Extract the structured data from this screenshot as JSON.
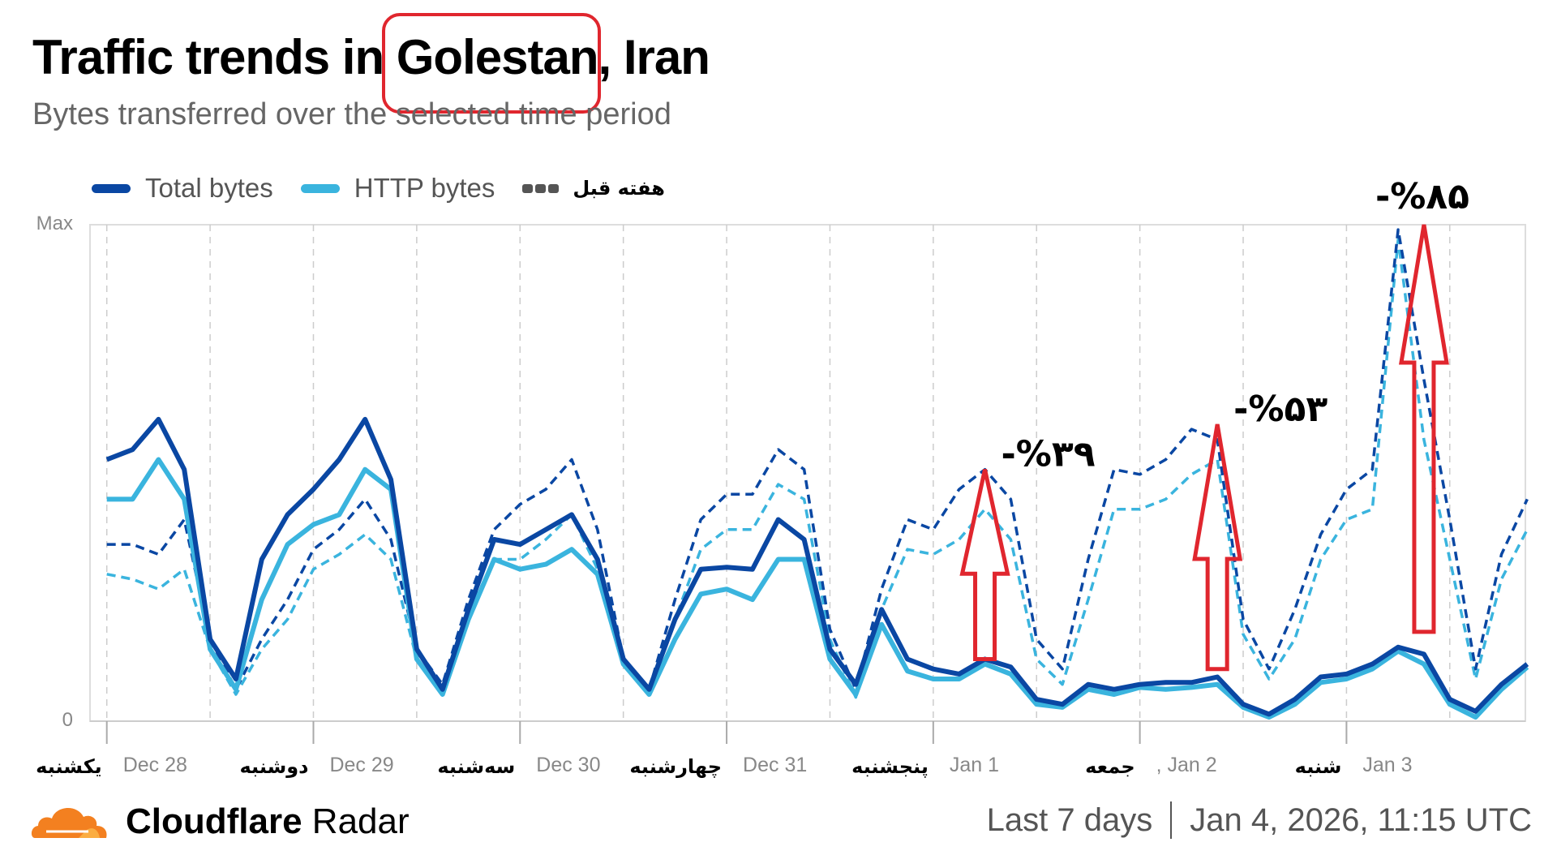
{
  "header": {
    "title_pre": "Traffic trends in ",
    "title_region": "Golestan",
    "title_post": ", Iran",
    "subtitle": "Bytes transferred over the selected time period"
  },
  "legend": [
    {
      "label": "Total bytes",
      "color": "#0a47a3",
      "style": "solid"
    },
    {
      "label": "HTTP bytes",
      "color": "#3ab4de",
      "style": "solid"
    },
    {
      "label": "هفته قبل",
      "color": "#555555",
      "style": "dashed"
    }
  ],
  "chart_data": {
    "type": "line",
    "title": "",
    "y_tick_labels": [
      "Max",
      "0"
    ],
    "ylim": [
      0,
      100
    ],
    "grid": "vertical dashed every 12 hours",
    "legend_position": "top-left",
    "x_ticks": [
      {
        "day": "یکشنبه",
        "date": "Dec 28"
      },
      {
        "day": "دوشنبه",
        "date": "Dec 29"
      },
      {
        "day": "سه‌شنبه",
        "date": "Dec 30"
      },
      {
        "day": "چهارشنبه",
        "date": "Dec 31"
      },
      {
        "day": "پنجشنبه",
        "date": "Jan 1"
      },
      {
        "day": "جمعه",
        "date": ", Jan 2"
      },
      {
        "day": "شنبه",
        "date": "Jan 3"
      }
    ],
    "x": [
      "Dec 28 00:00",
      "Dec 28 03:00",
      "Dec 28 06:00",
      "Dec 28 09:00",
      "Dec 28 12:00",
      "Dec 28 15:00",
      "Dec 28 18:00",
      "Dec 28 21:00",
      "Dec 29 00:00",
      "Dec 29 03:00",
      "Dec 29 06:00",
      "Dec 29 09:00",
      "Dec 29 12:00",
      "Dec 29 15:00",
      "Dec 29 18:00",
      "Dec 29 21:00",
      "Dec 30 00:00",
      "Dec 30 03:00",
      "Dec 30 06:00",
      "Dec 30 09:00",
      "Dec 30 12:00",
      "Dec 30 15:00",
      "Dec 30 18:00",
      "Dec 30 21:00",
      "Dec 31 00:00",
      "Dec 31 03:00",
      "Dec 31 06:00",
      "Dec 31 09:00",
      "Dec 31 12:00",
      "Dec 31 15:00",
      "Dec 31 18:00",
      "Dec 31 21:00",
      "Jan 1 00:00",
      "Jan 1 03:00",
      "Jan 1 06:00",
      "Jan 1 09:00",
      "Jan 1 12:00",
      "Jan 1 15:00",
      "Jan 1 18:00",
      "Jan 1 21:00",
      "Jan 2 00:00",
      "Jan 2 03:00",
      "Jan 2 06:00",
      "Jan 2 09:00",
      "Jan 2 12:00",
      "Jan 2 15:00",
      "Jan 2 18:00",
      "Jan 2 21:00",
      "Jan 3 00:00",
      "Jan 3 03:00",
      "Jan 3 06:00",
      "Jan 3 09:00",
      "Jan 3 12:00",
      "Jan 3 15:00",
      "Jan 3 18:00",
      "Jan 3 21:00"
    ],
    "series": [
      {
        "name": "Total bytes",
        "color": "#0a47a3",
        "dashed": false,
        "values": [
          52.7,
          54.7,
          60.8,
          50.7,
          16.5,
          8.5,
          32.6,
          41.6,
          46.7,
          52.7,
          60.8,
          48.7,
          14.5,
          6.4,
          22.5,
          36.6,
          35.6,
          38.6,
          41.6,
          32.6,
          12.5,
          6.4,
          20.5,
          30.6,
          31.0,
          30.6,
          40.6,
          36.6,
          14.5,
          7.4,
          22.5,
          12.5,
          10.5,
          9.5,
          12.5,
          10.9,
          4.4,
          3.4,
          7.4,
          6.4,
          7.4,
          7.8,
          7.8,
          8.9,
          3.4,
          1.4,
          4.4,
          8.9,
          9.5,
          11.5,
          14.9,
          13.5,
          4.4,
          2.0,
          7.4,
          11.5
        ]
      },
      {
        "name": "HTTP bytes",
        "color": "#3ab4de",
        "dashed": false,
        "values": [
          44.7,
          44.7,
          52.7,
          44.7,
          14.5,
          6.4,
          24.5,
          35.6,
          39.6,
          41.6,
          50.7,
          46.7,
          12.5,
          5.4,
          20.5,
          32.6,
          30.6,
          31.6,
          34.6,
          29.6,
          11.5,
          5.4,
          16.5,
          25.6,
          26.6,
          24.5,
          32.6,
          32.6,
          12.5,
          5.4,
          19.5,
          10.1,
          8.5,
          8.5,
          11.5,
          9.5,
          3.4,
          2.8,
          6.4,
          5.4,
          6.8,
          6.4,
          6.8,
          7.4,
          2.8,
          0.8,
          3.4,
          7.8,
          8.5,
          10.5,
          14.1,
          11.5,
          3.4,
          0.8,
          6.4,
          10.9
        ]
      },
      {
        "name": "هفته قبل",
        "color": "#0a47a3",
        "dashed": true,
        "values": [
          35.6,
          35.6,
          33.6,
          40.6,
          16.5,
          6.4,
          16.5,
          24.5,
          34.6,
          38.6,
          44.7,
          36.6,
          14.5,
          7.4,
          24.5,
          38.6,
          43.7,
          46.7,
          52.7,
          38.6,
          12.5,
          6.4,
          24.5,
          40.6,
          45.7,
          45.7,
          54.7,
          50.7,
          18.5,
          6.4,
          26.6,
          40.6,
          38.6,
          46.7,
          50.7,
          44.7,
          16.5,
          10.5,
          32.6,
          50.7,
          49.7,
          52.7,
          58.8,
          56.7,
          20.5,
          10.5,
          22.5,
          37.6,
          46.7,
          50.7,
          99,
          68.8,
          40.6,
          10.5,
          33.6,
          44.7
        ]
      },
      {
        "name": "هفته قبل",
        "color": "#3ab4de",
        "dashed": true,
        "values": [
          29.6,
          28.6,
          26.6,
          30.6,
          14.5,
          5.4,
          14.5,
          20.5,
          30.6,
          33.6,
          37.6,
          32.6,
          12.5,
          5.4,
          21.7,
          32.6,
          32.6,
          36.6,
          41.6,
          30.6,
          11.5,
          5.4,
          20.5,
          34.6,
          38.6,
          38.6,
          47.7,
          44.7,
          16.5,
          4.8,
          22.5,
          34.6,
          33.6,
          36.6,
          42.7,
          36.6,
          12.5,
          7.4,
          24.5,
          42.7,
          42.7,
          44.7,
          49.7,
          52.7,
          17.5,
          8.5,
          16.5,
          32.6,
          40.6,
          42.7,
          97,
          56.7,
          32.6,
          8.5,
          28.6,
          38.6
        ]
      }
    ],
    "annotations": [
      {
        "x": "Jan 1 06:00",
        "from": 12.5,
        "to": 50.7,
        "label": "-%۳۹"
      },
      {
        "x": "Jan 2 09:00",
        "from": 10.5,
        "to": 59.8,
        "label": "-%۵۳"
      },
      {
        "x": "Jan 3 09:00",
        "from": 18.0,
        "to": 100,
        "label": "-%۸۵"
      }
    ],
    "annotation_color": "#e0262e"
  },
  "footer": {
    "brand_bold": "Cloudflare",
    "brand_light": " Radar",
    "range": "Last 7 days",
    "timestamp": "Jan 4, 2026, 11:15 UTC",
    "logo_color": "#f38020"
  }
}
